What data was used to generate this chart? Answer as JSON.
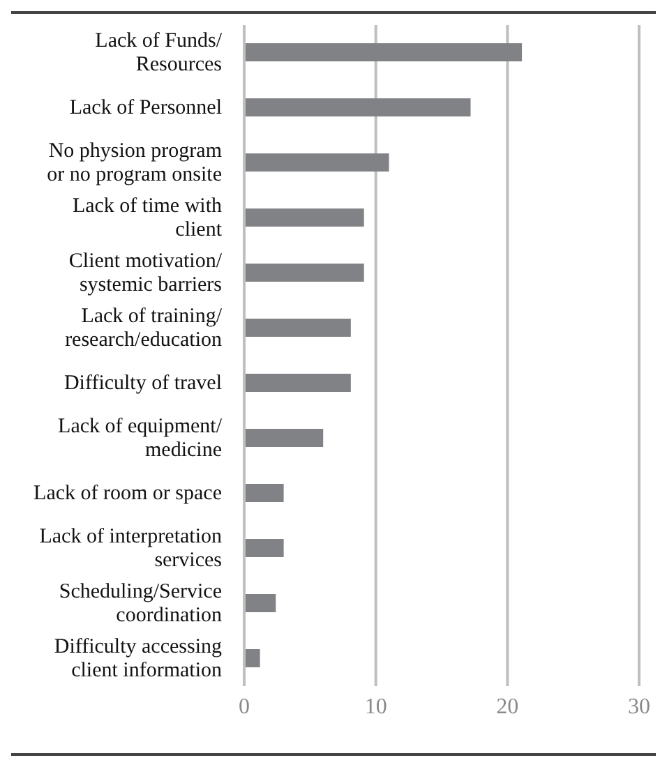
{
  "chart_data": {
    "type": "bar",
    "orientation": "horizontal",
    "categories": [
      "Lack of Funds/ Resources",
      "Lack of Personnel",
      "No physion program or no program onsite",
      "Lack of time with client",
      "Client motivation/ systemic barriers",
      "Lack of training/ research/education",
      "Difficulty of travel",
      "Lack of equipment/ medicine",
      "Lack of room or space",
      "Lack of interpretation services",
      "Scheduling/Service coordination",
      "Difficulty accessing client information"
    ],
    "values": [
      21.1,
      17.2,
      11,
      9.1,
      9.1,
      8.1,
      8.1,
      6,
      3,
      3,
      2.4,
      1.2
    ],
    "color": "#808285",
    "xlim": [
      0,
      30
    ],
    "xticks": [
      0,
      10,
      20,
      30
    ],
    "grid": "x"
  }
}
